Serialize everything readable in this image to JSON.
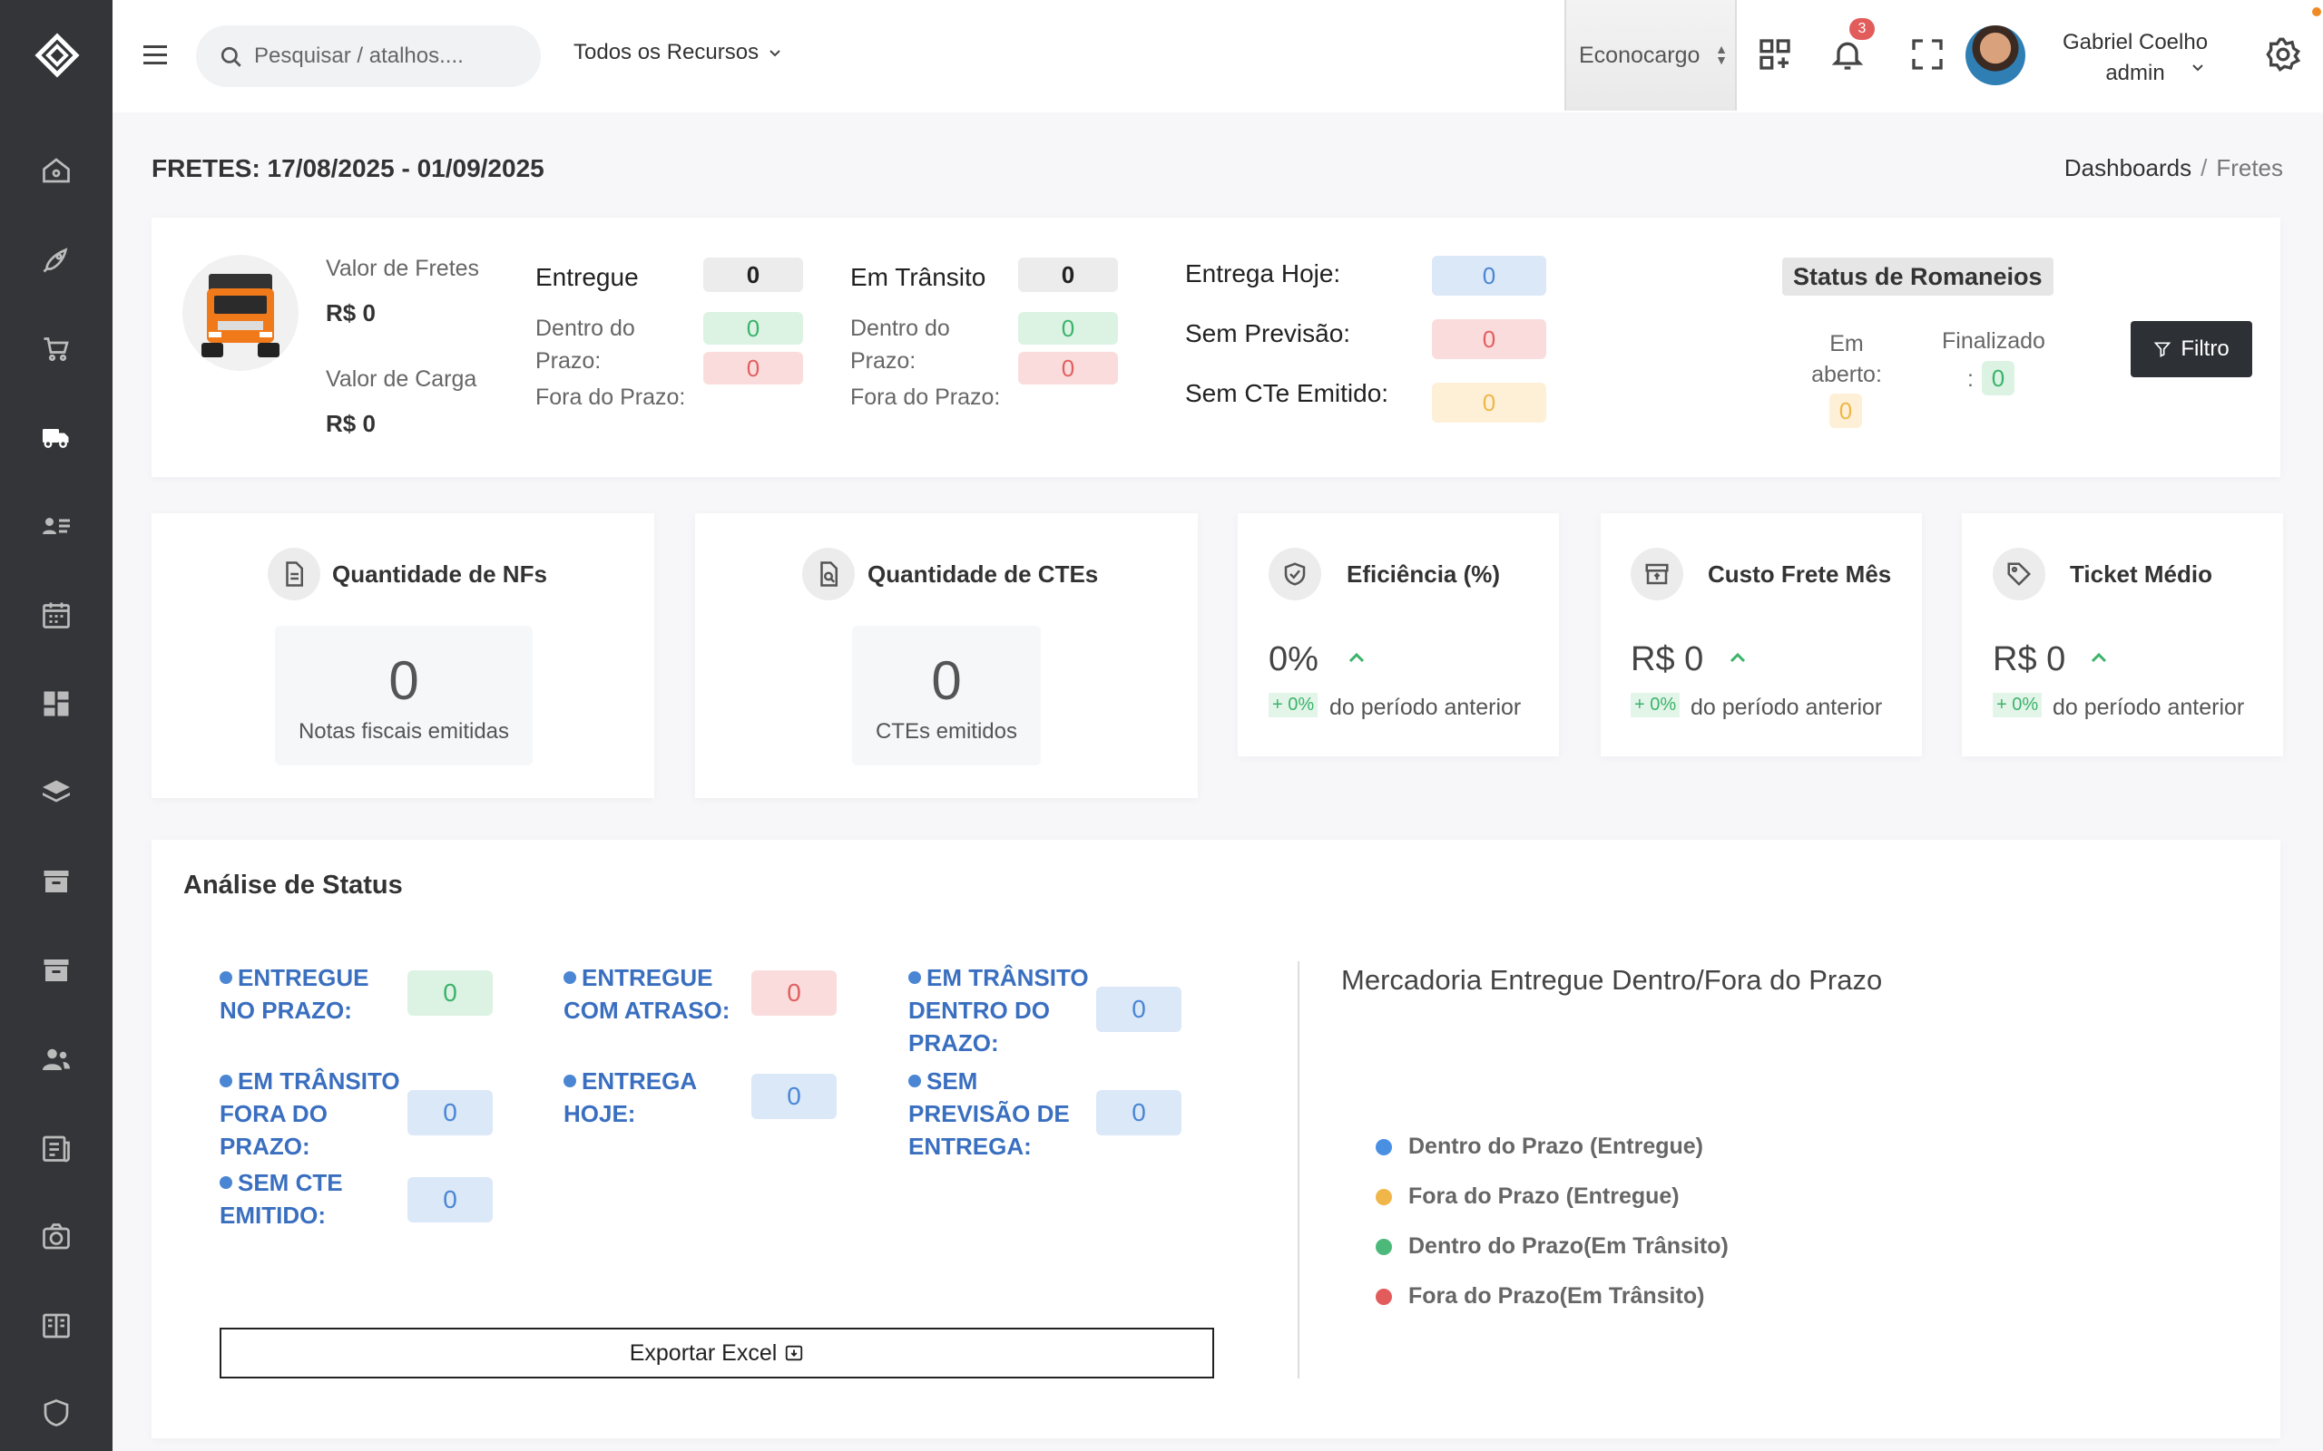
{
  "topbar": {
    "search_placeholder": "Pesquisar / atalhos....",
    "resources_label": "Todos os Recursos",
    "company": "Econocargo",
    "notifications_count": "3",
    "user_name": "Gabriel Coelho",
    "user_role": "admin"
  },
  "page": {
    "title": "FRETES: 17/08/2025 - 01/09/2025",
    "breadcrumb": [
      "Dashboards",
      "Fretes"
    ]
  },
  "summary": {
    "valor_fretes_label": "Valor de Fretes",
    "valor_fretes": "R$ 0",
    "valor_carga_label": "Valor de Carga",
    "valor_carga": "R$ 0",
    "entregue_label": "Entregue",
    "entregue": "0",
    "entregue_dentro_label": "Dentro do Prazo:",
    "entregue_dentro": "0",
    "entregue_fora_label": "Fora do Prazo:",
    "entregue_fora": "0",
    "transito_label": "Em Trânsito",
    "transito": "0",
    "transito_dentro_label": "Dentro do Prazo:",
    "transito_dentro": "0",
    "transito_fora_label": "Fora do Prazo:",
    "transito_fora": "0",
    "entrega_hoje_label": "Entrega Hoje:",
    "entrega_hoje": "0",
    "sem_previsao_label": "Sem Previsão:",
    "sem_previsao": "0",
    "sem_cte_label": "Sem CTe Emitido:",
    "sem_cte": "0",
    "romaneios_title": "Status de Romaneios",
    "em_aberto_label": "Em aberto:",
    "em_aberto": "0",
    "finalizado_label": "Finalizado",
    "finalizado_colon": ":",
    "finalizado": "0",
    "filtro_label": "Filtro"
  },
  "kpis": {
    "nfs_title": "Quantidade de NFs",
    "nfs_value": "0",
    "nfs_sub": "Notas fiscais emitidas",
    "ctes_title": "Quantidade de CTEs",
    "ctes_value": "0",
    "ctes_sub": "CTEs emitidos",
    "eficiencia_title": "Eficiência (%)",
    "eficiencia_value": "0%",
    "eficiencia_change": "+ 0%",
    "custo_title": "Custo Frete Mês",
    "custo_value": "R$ 0",
    "custo_change": "+ 0%",
    "ticket_title": "Ticket Médio",
    "ticket_value": "R$ 0",
    "ticket_change": "+ 0%",
    "period_text": "do período anterior"
  },
  "status": {
    "title": "Análise de Status",
    "items": [
      {
        "label": "ENTREGUE NO PRAZO:",
        "value": "0"
      },
      {
        "label": "ENTREGUE COM ATRASO:",
        "value": "0"
      },
      {
        "label": "EM TRÂNSITO DENTRO DO PRAZO:",
        "value": "0"
      },
      {
        "label": "EM TRÂNSITO FORA DO PRAZO:",
        "value": "0"
      },
      {
        "label": "ENTREGA HOJE:",
        "value": "0"
      },
      {
        "label": "SEM PREVISÃO DE ENTREGA:",
        "value": "0"
      },
      {
        "label": "SEM CTE EMITIDO:",
        "value": "0"
      }
    ],
    "export_label": "Exportar Excel"
  },
  "chart_data": {
    "type": "pie",
    "title": "Mercadoria Entregue Dentro/Fora do Prazo",
    "categories": [
      "Dentro do Prazo (Entregue)",
      "Fora do Prazo (Entregue)",
      "Dentro do Prazo(Em Trânsito)",
      "Fora do Prazo(Em Trânsito)"
    ],
    "values": [
      0,
      0,
      0,
      0
    ],
    "colors": [
      "#4a90e2",
      "#f0b64a",
      "#4cb97a",
      "#e25c5c"
    ],
    "legend": "left"
  }
}
